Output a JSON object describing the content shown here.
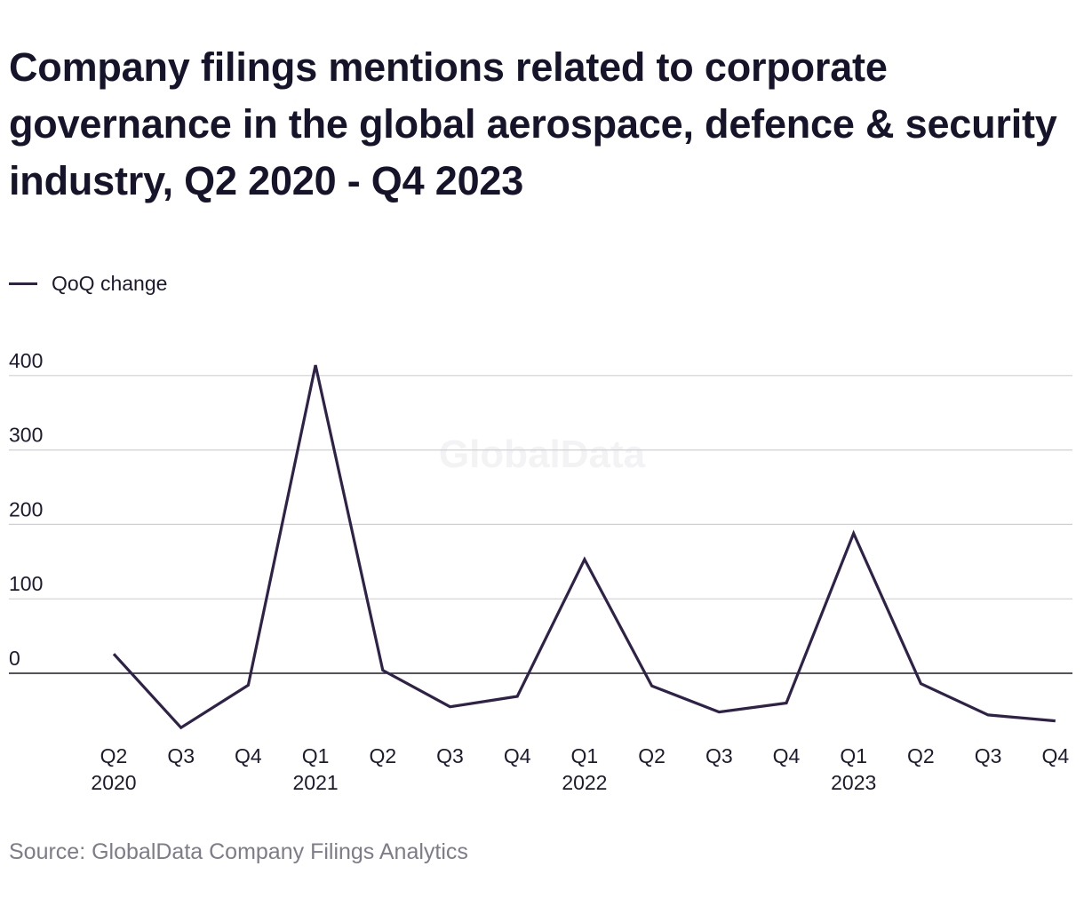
{
  "title": "Company filings mentions related to corporate governance in the global aerospace, defence & security industry, Q2 2020 - Q4 2023",
  "source": "Source: GlobalData Company Filings Analytics",
  "watermark": "GlobalData",
  "colors": {
    "line": "#2e2248",
    "grid": "#d0d0d4",
    "zero_line": "#1b1a2e",
    "text": "#1b1a2e",
    "muted": "#7d7c88"
  },
  "chart_data": {
    "type": "line",
    "title": "Company filings mentions related to corporate governance in the global aerospace, defence & security industry, Q2 2020 - Q4 2023",
    "xlabel": "",
    "ylabel": "",
    "categories": [
      "Q2",
      "Q3",
      "Q4",
      "Q1",
      "Q2",
      "Q3",
      "Q4",
      "Q1",
      "Q2",
      "Q3",
      "Q4",
      "Q1",
      "Q2",
      "Q3",
      "Q4"
    ],
    "category_years": [
      "2020",
      "",
      "",
      "2021",
      "",
      "",
      "",
      "2022",
      "",
      "",
      "",
      "2023",
      "",
      "",
      ""
    ],
    "series": [
      {
        "name": "QoQ change",
        "values": [
          26,
          -73,
          -16,
          414,
          4,
          -45,
          -31,
          153,
          -17,
          -52,
          -40,
          188,
          -14,
          -56,
          -64
        ]
      }
    ],
    "yticks": [
      0,
      100,
      200,
      300,
      400
    ],
    "ylim": [
      -80,
      420
    ],
    "grid": true,
    "legend": "top-left"
  }
}
